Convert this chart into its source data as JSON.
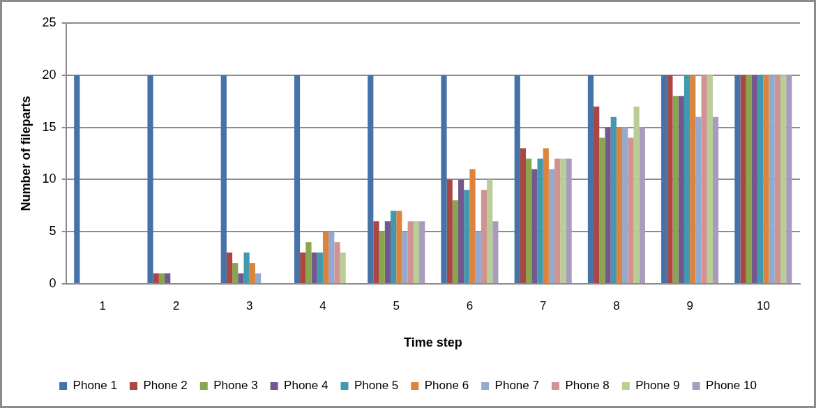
{
  "chart_data": {
    "type": "bar",
    "xlabel": "Time step",
    "ylabel": "Number of fileparts",
    "categories": [
      "1",
      "2",
      "3",
      "4",
      "5",
      "6",
      "7",
      "8",
      "9",
      "10"
    ],
    "series": [
      {
        "name": "Phone 1",
        "color": "#4572a7",
        "values": [
          20,
          20,
          20,
          20,
          20,
          20,
          20,
          20,
          20,
          20
        ]
      },
      {
        "name": "Phone 2",
        "color": "#aa4643",
        "values": [
          0,
          1,
          3,
          3,
          6,
          10,
          13,
          17,
          20,
          20
        ]
      },
      {
        "name": "Phone 3",
        "color": "#89a54e",
        "values": [
          0,
          1,
          2,
          4,
          5,
          8,
          12,
          14,
          18,
          20
        ]
      },
      {
        "name": "Phone 4",
        "color": "#71588f",
        "values": [
          0,
          1,
          1,
          3,
          6,
          10,
          11,
          15,
          18,
          20
        ]
      },
      {
        "name": "Phone 5",
        "color": "#4198af",
        "values": [
          0,
          0,
          3,
          3,
          7,
          9,
          12,
          16,
          20,
          20
        ]
      },
      {
        "name": "Phone 6",
        "color": "#db843d",
        "values": [
          0,
          0,
          2,
          5,
          7,
          11,
          13,
          15,
          20,
          20
        ]
      },
      {
        "name": "Phone 7",
        "color": "#93a9cf",
        "values": [
          0,
          0,
          1,
          5,
          5,
          5,
          11,
          15,
          16,
          20
        ]
      },
      {
        "name": "Phone 8",
        "color": "#d19392",
        "values": [
          0,
          0,
          0,
          4,
          6,
          9,
          12,
          14,
          20,
          20
        ]
      },
      {
        "name": "Phone 9",
        "color": "#b9cd96",
        "values": [
          0,
          0,
          0,
          3,
          6,
          10,
          12,
          17,
          20,
          20
        ]
      },
      {
        "name": "Phone 10",
        "color": "#a99bbd",
        "values": [
          0,
          0,
          0,
          0,
          6,
          6,
          12,
          15,
          16,
          20
        ]
      }
    ],
    "ylim": [
      0,
      25
    ],
    "yticks": [
      0,
      5,
      10,
      15,
      20,
      25
    ],
    "grid": "y",
    "legend": "bottom"
  }
}
